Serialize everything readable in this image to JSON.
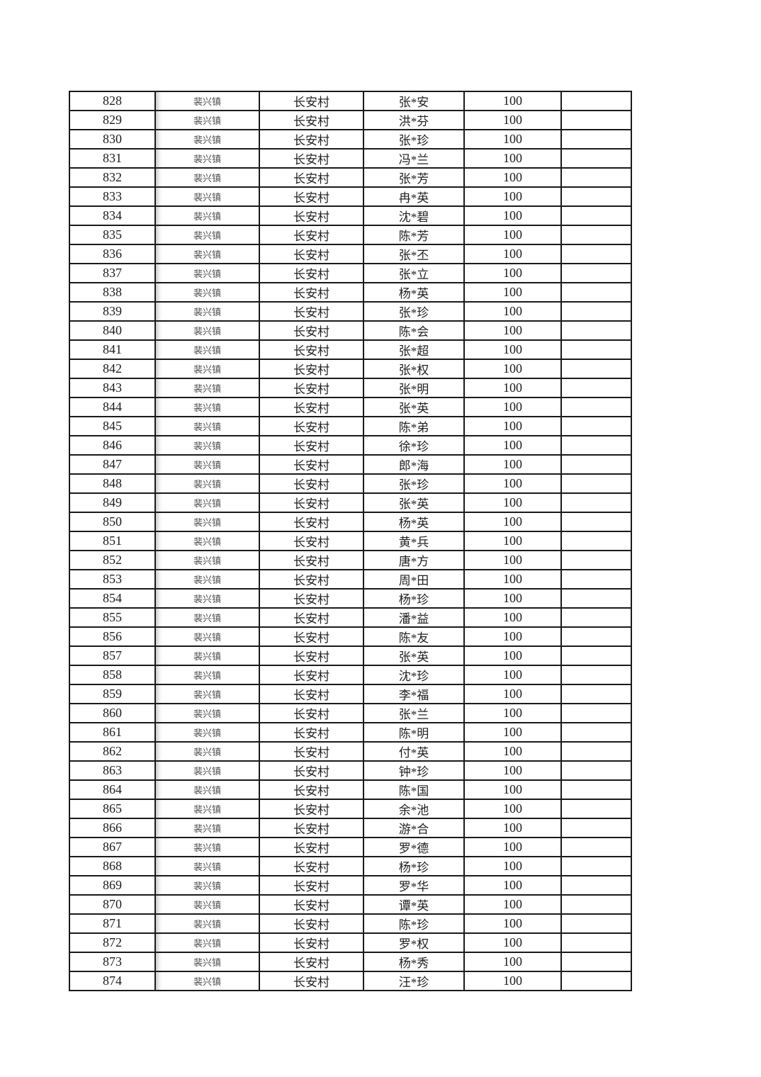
{
  "colors": {
    "page_background": "#ffffff",
    "table_border": "#1a1a1a",
    "text": "#1c1c1c",
    "town_text": "#4f4f4f"
  },
  "table": {
    "rows": [
      {
        "no": "828",
        "town": "裴兴镇",
        "village": "长安村",
        "name": "张*安",
        "amount": "100",
        "note": ""
      },
      {
        "no": "829",
        "town": "裴兴镇",
        "village": "长安村",
        "name": "洪*芬",
        "amount": "100",
        "note": ""
      },
      {
        "no": "830",
        "town": "裴兴镇",
        "village": "长安村",
        "name": "张*珍",
        "amount": "100",
        "note": ""
      },
      {
        "no": "831",
        "town": "裴兴镇",
        "village": "长安村",
        "name": "冯*兰",
        "amount": "100",
        "note": ""
      },
      {
        "no": "832",
        "town": "裴兴镇",
        "village": "长安村",
        "name": "张*芳",
        "amount": "100",
        "note": ""
      },
      {
        "no": "833",
        "town": "裴兴镇",
        "village": "长安村",
        "name": "冉*英",
        "amount": "100",
        "note": ""
      },
      {
        "no": "834",
        "town": "裴兴镇",
        "village": "长安村",
        "name": "沈*碧",
        "amount": "100",
        "note": ""
      },
      {
        "no": "835",
        "town": "裴兴镇",
        "village": "长安村",
        "name": "陈*芳",
        "amount": "100",
        "note": ""
      },
      {
        "no": "836",
        "town": "裴兴镇",
        "village": "长安村",
        "name": "张*丕",
        "amount": "100",
        "note": ""
      },
      {
        "no": "837",
        "town": "裴兴镇",
        "village": "长安村",
        "name": "张*立",
        "amount": "100",
        "note": ""
      },
      {
        "no": "838",
        "town": "裴兴镇",
        "village": "长安村",
        "name": "杨*英",
        "amount": "100",
        "note": ""
      },
      {
        "no": "839",
        "town": "裴兴镇",
        "village": "长安村",
        "name": "张*珍",
        "amount": "100",
        "note": ""
      },
      {
        "no": "840",
        "town": "裴兴镇",
        "village": "长安村",
        "name": "陈*会",
        "amount": "100",
        "note": ""
      },
      {
        "no": "841",
        "town": "裴兴镇",
        "village": "长安村",
        "name": "张*超",
        "amount": "100",
        "note": ""
      },
      {
        "no": "842",
        "town": "裴兴镇",
        "village": "长安村",
        "name": "张*权",
        "amount": "100",
        "note": ""
      },
      {
        "no": "843",
        "town": "裴兴镇",
        "village": "长安村",
        "name": "张*明",
        "amount": "100",
        "note": ""
      },
      {
        "no": "844",
        "town": "裴兴镇",
        "village": "长安村",
        "name": "张*英",
        "amount": "100",
        "note": ""
      },
      {
        "no": "845",
        "town": "裴兴镇",
        "village": "长安村",
        "name": "陈*弟",
        "amount": "100",
        "note": ""
      },
      {
        "no": "846",
        "town": "裴兴镇",
        "village": "长安村",
        "name": "徐*珍",
        "amount": "100",
        "note": ""
      },
      {
        "no": "847",
        "town": "裴兴镇",
        "village": "长安村",
        "name": "郎*海",
        "amount": "100",
        "note": ""
      },
      {
        "no": "848",
        "town": "裴兴镇",
        "village": "长安村",
        "name": "张*珍",
        "amount": "100",
        "note": ""
      },
      {
        "no": "849",
        "town": "裴兴镇",
        "village": "长安村",
        "name": "张*英",
        "amount": "100",
        "note": ""
      },
      {
        "no": "850",
        "town": "裴兴镇",
        "village": "长安村",
        "name": "杨*英",
        "amount": "100",
        "note": ""
      },
      {
        "no": "851",
        "town": "裴兴镇",
        "village": "长安村",
        "name": "黄*兵",
        "amount": "100",
        "note": ""
      },
      {
        "no": "852",
        "town": "裴兴镇",
        "village": "长安村",
        "name": "唐*方",
        "amount": "100",
        "note": ""
      },
      {
        "no": "853",
        "town": "裴兴镇",
        "village": "长安村",
        "name": "周*田",
        "amount": "100",
        "note": ""
      },
      {
        "no": "854",
        "town": "裴兴镇",
        "village": "长安村",
        "name": "杨*珍",
        "amount": "100",
        "note": ""
      },
      {
        "no": "855",
        "town": "裴兴镇",
        "village": "长安村",
        "name": "潘*益",
        "amount": "100",
        "note": ""
      },
      {
        "no": "856",
        "town": "裴兴镇",
        "village": "长安村",
        "name": "陈*友",
        "amount": "100",
        "note": ""
      },
      {
        "no": "857",
        "town": "裴兴镇",
        "village": "长安村",
        "name": "张*英",
        "amount": "100",
        "note": ""
      },
      {
        "no": "858",
        "town": "裴兴镇",
        "village": "长安村",
        "name": "沈*珍",
        "amount": "100",
        "note": ""
      },
      {
        "no": "859",
        "town": "裴兴镇",
        "village": "长安村",
        "name": "李*福",
        "amount": "100",
        "note": ""
      },
      {
        "no": "860",
        "town": "裴兴镇",
        "village": "长安村",
        "name": "张*兰",
        "amount": "100",
        "note": ""
      },
      {
        "no": "861",
        "town": "裴兴镇",
        "village": "长安村",
        "name": "陈*明",
        "amount": "100",
        "note": ""
      },
      {
        "no": "862",
        "town": "裴兴镇",
        "village": "长安村",
        "name": "付*英",
        "amount": "100",
        "note": ""
      },
      {
        "no": "863",
        "town": "裴兴镇",
        "village": "长安村",
        "name": "钟*珍",
        "amount": "100",
        "note": ""
      },
      {
        "no": "864",
        "town": "裴兴镇",
        "village": "长安村",
        "name": "陈*国",
        "amount": "100",
        "note": ""
      },
      {
        "no": "865",
        "town": "裴兴镇",
        "village": "长安村",
        "name": "余*池",
        "amount": "100",
        "note": ""
      },
      {
        "no": "866",
        "town": "裴兴镇",
        "village": "长安村",
        "name": "游*合",
        "amount": "100",
        "note": ""
      },
      {
        "no": "867",
        "town": "裴兴镇",
        "village": "长安村",
        "name": "罗*德",
        "amount": "100",
        "note": ""
      },
      {
        "no": "868",
        "town": "裴兴镇",
        "village": "长安村",
        "name": "杨*珍",
        "amount": "100",
        "note": ""
      },
      {
        "no": "869",
        "town": "裴兴镇",
        "village": "长安村",
        "name": "罗*华",
        "amount": "100",
        "note": ""
      },
      {
        "no": "870",
        "town": "裴兴镇",
        "village": "长安村",
        "name": "谭*英",
        "amount": "100",
        "note": ""
      },
      {
        "no": "871",
        "town": "裴兴镇",
        "village": "长安村",
        "name": "陈*珍",
        "amount": "100",
        "note": ""
      },
      {
        "no": "872",
        "town": "裴兴镇",
        "village": "长安村",
        "name": "罗*权",
        "amount": "100",
        "note": ""
      },
      {
        "no": "873",
        "town": "裴兴镇",
        "village": "长安村",
        "name": "杨*秀",
        "amount": "100",
        "note": ""
      },
      {
        "no": "874",
        "town": "裴兴镇",
        "village": "长安村",
        "name": "汪*珍",
        "amount": "100",
        "note": ""
      }
    ]
  }
}
